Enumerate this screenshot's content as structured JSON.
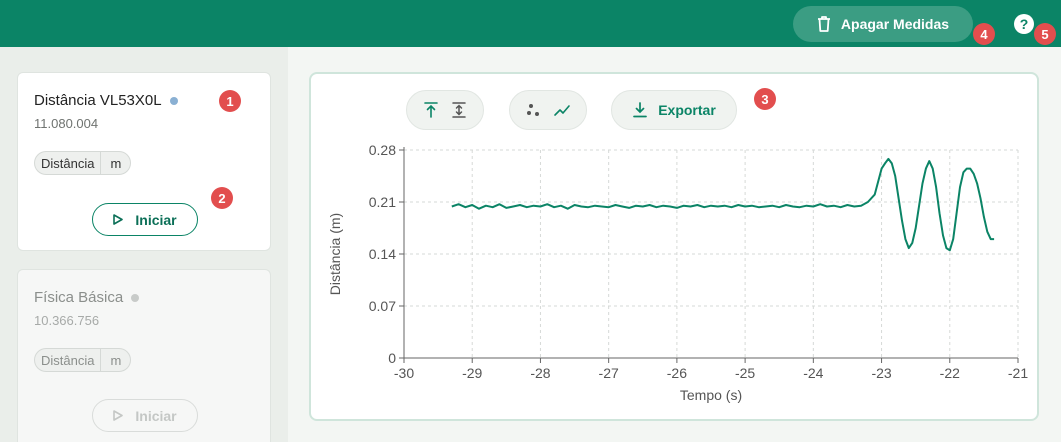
{
  "header": {
    "clear_label": "Apagar Medidas",
    "help_label": "?",
    "clear_icon": "trash-icon",
    "help_icon": "help-icon",
    "color": "#0b8466"
  },
  "badges": [
    "1",
    "2",
    "3",
    "4",
    "5"
  ],
  "sensors": [
    {
      "title": "Distância VL53X0L",
      "id": "11.080.004",
      "chip_quantity": "Distância",
      "chip_unit": "m",
      "start_label": "Iniciar",
      "status_color": "#8ab0d3",
      "active": true
    },
    {
      "title": "Física Básica",
      "id": "10.366.756",
      "chip_quantity": "Distância",
      "chip_unit": "m",
      "start_label": "Iniciar",
      "status_color": "#c8cbc9",
      "active": false
    }
  ],
  "toolbar": {
    "export_label": "Exportar",
    "tools": [
      "align-top-icon",
      "fit-vertical-icon",
      "scatter-icon",
      "line-chart-icon"
    ]
  },
  "chart_data": {
    "type": "line",
    "xlabel": "Tempo (s)",
    "ylabel": "Distância (m)",
    "xlim": [
      -30,
      -21
    ],
    "ylim": [
      0,
      0.28
    ],
    "xticks": [
      -30,
      -29,
      -28,
      -27,
      -26,
      -25,
      -24,
      -23,
      -22,
      -21
    ],
    "yticks": [
      0,
      0.07,
      0.14,
      0.21,
      0.28
    ],
    "ytick_labels": [
      "0",
      "0.07",
      "0.14",
      "0.21",
      "0.28"
    ],
    "grid": true,
    "line_color": "#0b8466",
    "series": [
      {
        "x": [
          -29.3,
          -29.2,
          -29.1,
          -29.0,
          -28.9,
          -28.8,
          -28.7,
          -28.6,
          -28.5,
          -28.4,
          -28.3,
          -28.2,
          -28.1,
          -28.0,
          -27.9,
          -27.8,
          -27.7,
          -27.6,
          -27.5,
          -27.4,
          -27.3,
          -27.2,
          -27.1,
          -27.0,
          -26.9,
          -26.8,
          -26.7,
          -26.6,
          -26.5,
          -26.4,
          -26.3,
          -26.2,
          -26.1,
          -26.0,
          -25.9,
          -25.8,
          -25.7,
          -25.6,
          -25.5,
          -25.4,
          -25.3,
          -25.2,
          -25.1,
          -25.0,
          -24.9,
          -24.8,
          -24.7,
          -24.6,
          -24.5,
          -24.4,
          -24.3,
          -24.2,
          -24.1,
          -24.0,
          -23.9,
          -23.8,
          -23.7,
          -23.6,
          -23.5,
          -23.4,
          -23.3,
          -23.2,
          -23.1,
          -23.0,
          -22.95,
          -22.9,
          -22.85,
          -22.8,
          -22.75,
          -22.7,
          -22.65,
          -22.6,
          -22.55,
          -22.5,
          -22.45,
          -22.4,
          -22.35,
          -22.3,
          -22.25,
          -22.2,
          -22.15,
          -22.1,
          -22.05,
          -22.0,
          -21.95,
          -21.9,
          -21.85,
          -21.8,
          -21.75,
          -21.7,
          -21.65,
          -21.6,
          -21.55,
          -21.5,
          -21.45,
          -21.4,
          -21.35
        ],
        "y": [
          0.204,
          0.207,
          0.203,
          0.206,
          0.201,
          0.205,
          0.203,
          0.207,
          0.202,
          0.204,
          0.206,
          0.203,
          0.205,
          0.204,
          0.207,
          0.203,
          0.205,
          0.201,
          0.206,
          0.204,
          0.203,
          0.205,
          0.204,
          0.203,
          0.206,
          0.204,
          0.202,
          0.205,
          0.204,
          0.206,
          0.203,
          0.205,
          0.204,
          0.202,
          0.205,
          0.204,
          0.206,
          0.203,
          0.205,
          0.204,
          0.205,
          0.203,
          0.206,
          0.204,
          0.205,
          0.203,
          0.204,
          0.205,
          0.203,
          0.206,
          0.204,
          0.203,
          0.205,
          0.204,
          0.207,
          0.204,
          0.205,
          0.203,
          0.206,
          0.204,
          0.205,
          0.21,
          0.22,
          0.255,
          0.262,
          0.268,
          0.262,
          0.245,
          0.215,
          0.185,
          0.16,
          0.148,
          0.155,
          0.175,
          0.205,
          0.235,
          0.255,
          0.265,
          0.255,
          0.23,
          0.195,
          0.165,
          0.148,
          0.145,
          0.16,
          0.195,
          0.23,
          0.25,
          0.255,
          0.255,
          0.248,
          0.235,
          0.215,
          0.19,
          0.17,
          0.16,
          0.16
        ]
      }
    ]
  }
}
